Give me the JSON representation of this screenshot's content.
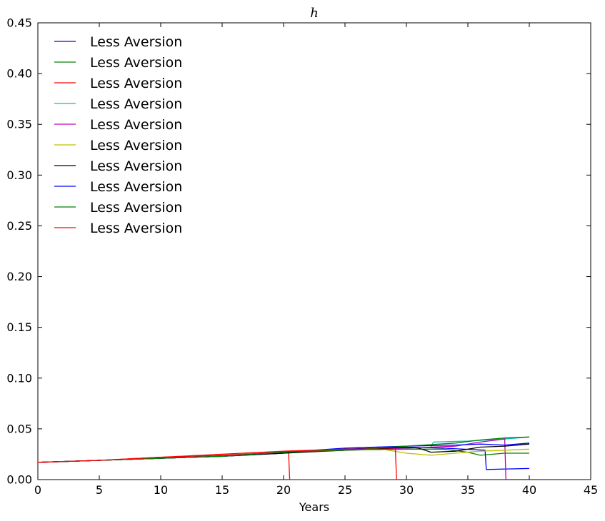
{
  "chart_data": {
    "type": "line",
    "title": "h",
    "xlabel": "Years",
    "ylabel": "",
    "xlim": [
      0,
      45
    ],
    "ylim": [
      0,
      0.45
    ],
    "x_ticks": [
      0,
      5,
      10,
      15,
      20,
      25,
      30,
      35,
      40,
      45
    ],
    "x_tick_labels": [
      "0",
      "5",
      "10",
      "15",
      "20",
      "25",
      "30",
      "35",
      "40",
      "45"
    ],
    "y_ticks": [
      0,
      0.05,
      0.1,
      0.15,
      0.2,
      0.25,
      0.3,
      0.35,
      0.4,
      0.45
    ],
    "y_tick_labels": [
      "0.00",
      "0.05",
      "0.10",
      "0.15",
      "0.20",
      "0.25",
      "0.30",
      "0.35",
      "0.40",
      "0.45"
    ],
    "grid": false,
    "legend_position": "top-left",
    "series": [
      {
        "name": "Less Aversion",
        "color": "#0000ff",
        "points": [
          [
            0,
            0.017
          ],
          [
            5,
            0.019
          ],
          [
            10,
            0.021
          ],
          [
            15,
            0.023
          ],
          [
            20,
            0.026
          ],
          [
            25,
            0.03
          ],
          [
            30,
            0.032
          ],
          [
            33,
            0.031
          ],
          [
            36.4,
            0.029
          ],
          [
            36.5,
            0.01
          ],
          [
            40,
            0.011
          ]
        ]
      },
      {
        "name": "Less Aversion",
        "color": "#008000",
        "points": [
          [
            0,
            0.017
          ],
          [
            5,
            0.019
          ],
          [
            10,
            0.021
          ],
          [
            15,
            0.023
          ],
          [
            20,
            0.027
          ],
          [
            25,
            0.029
          ],
          [
            30,
            0.03
          ],
          [
            33,
            0.03
          ],
          [
            35,
            0.027
          ],
          [
            36,
            0.024
          ],
          [
            38,
            0.026
          ],
          [
            40,
            0.026
          ]
        ]
      },
      {
        "name": "Less Aversion",
        "color": "#ff0000",
        "points": [
          [
            0,
            0.017
          ],
          [
            5,
            0.019
          ],
          [
            10,
            0.022
          ],
          [
            15,
            0.024
          ],
          [
            20,
            0.027
          ],
          [
            20.4,
            0.028
          ],
          [
            20.5,
            0.0
          ],
          [
            40,
            0.0
          ]
        ]
      },
      {
        "name": "Less Aversion",
        "color": "#00bfbf",
        "points": [
          [
            0,
            0.017
          ],
          [
            5,
            0.019
          ],
          [
            10,
            0.021
          ],
          [
            15,
            0.023
          ],
          [
            20,
            0.027
          ],
          [
            25,
            0.029
          ],
          [
            30,
            0.031
          ],
          [
            32,
            0.032
          ],
          [
            32.2,
            0.037
          ],
          [
            35,
            0.038
          ],
          [
            38,
            0.04
          ],
          [
            40,
            0.042
          ]
        ]
      },
      {
        "name": "Less Aversion",
        "color": "#bf00bf",
        "points": [
          [
            0,
            0.017
          ],
          [
            5,
            0.019
          ],
          [
            10,
            0.021
          ],
          [
            15,
            0.023
          ],
          [
            20,
            0.027
          ],
          [
            25,
            0.029
          ],
          [
            30,
            0.031
          ],
          [
            34,
            0.033
          ],
          [
            36,
            0.037
          ],
          [
            38,
            0.04
          ],
          [
            38.1,
            0.0
          ],
          [
            40,
            0.0
          ]
        ]
      },
      {
        "name": "Less Aversion",
        "color": "#bfbf00",
        "points": [
          [
            0,
            0.017
          ],
          [
            5,
            0.019
          ],
          [
            10,
            0.021
          ],
          [
            15,
            0.023
          ],
          [
            20,
            0.027
          ],
          [
            25,
            0.029
          ],
          [
            28,
            0.03
          ],
          [
            30,
            0.026
          ],
          [
            32,
            0.024
          ],
          [
            34,
            0.026
          ],
          [
            36,
            0.028
          ],
          [
            38,
            0.029
          ],
          [
            40,
            0.03
          ]
        ]
      },
      {
        "name": "Less Aversion",
        "color": "#000000",
        "points": [
          [
            0,
            0.017
          ],
          [
            5,
            0.019
          ],
          [
            10,
            0.021
          ],
          [
            15,
            0.023
          ],
          [
            20,
            0.026
          ],
          [
            25,
            0.029
          ],
          [
            30,
            0.032
          ],
          [
            31,
            0.031
          ],
          [
            32,
            0.027
          ],
          [
            34,
            0.028
          ],
          [
            36,
            0.032
          ],
          [
            38,
            0.033
          ],
          [
            40,
            0.035
          ]
        ]
      },
      {
        "name": "Less Aversion",
        "color": "#0000ff",
        "points": [
          [
            0,
            0.017
          ],
          [
            5,
            0.019
          ],
          [
            10,
            0.021
          ],
          [
            15,
            0.023
          ],
          [
            20,
            0.027
          ],
          [
            25,
            0.031
          ],
          [
            30,
            0.033
          ],
          [
            34,
            0.034
          ],
          [
            36,
            0.035
          ],
          [
            38,
            0.034
          ],
          [
            40,
            0.036
          ]
        ]
      },
      {
        "name": "Less Aversion",
        "color": "#008000",
        "points": [
          [
            0,
            0.017
          ],
          [
            5,
            0.019
          ],
          [
            10,
            0.021
          ],
          [
            15,
            0.023
          ],
          [
            20,
            0.027
          ],
          [
            25,
            0.029
          ],
          [
            30,
            0.033
          ],
          [
            34,
            0.036
          ],
          [
            36,
            0.039
          ],
          [
            38,
            0.041
          ],
          [
            40,
            0.042
          ]
        ]
      },
      {
        "name": "Less Aversion",
        "color": "#ff0000",
        "points": [
          [
            0,
            0.017
          ],
          [
            5,
            0.019
          ],
          [
            10,
            0.022
          ],
          [
            15,
            0.025
          ],
          [
            20,
            0.028
          ],
          [
            25,
            0.03
          ],
          [
            29.1,
            0.03
          ],
          [
            29.2,
            0.0
          ],
          [
            40,
            0.0
          ]
        ]
      }
    ]
  }
}
